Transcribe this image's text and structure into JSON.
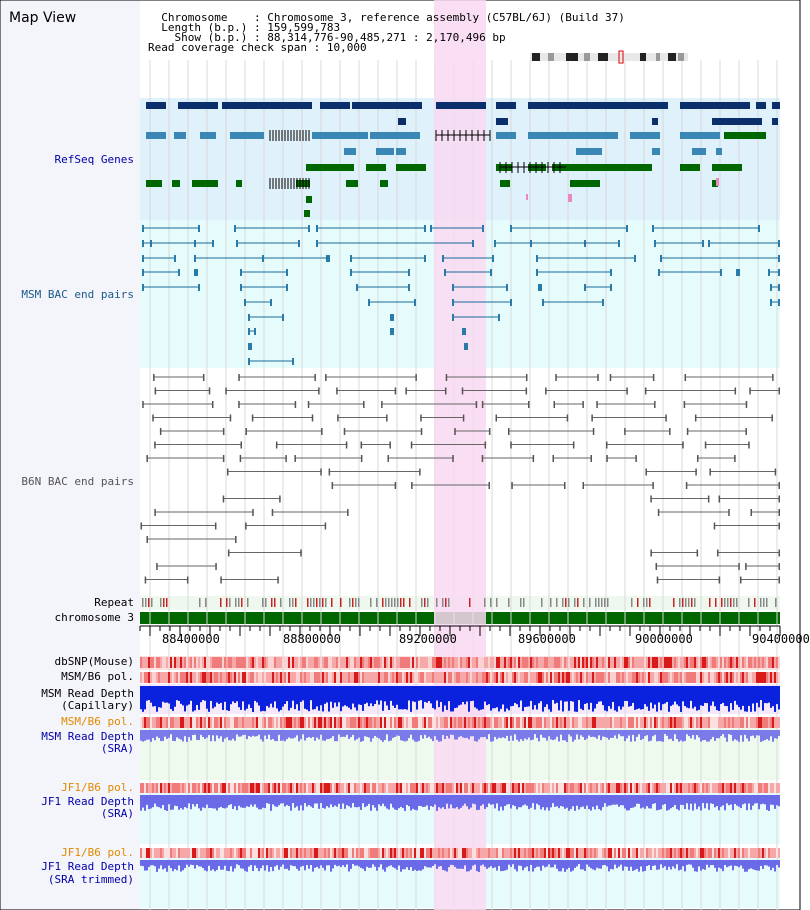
{
  "title": "Map View",
  "header": {
    "chromosome_key": "Chromosome",
    "chromosome_value": "Chromosome 3, reference assembly (C57BL/6J) (Build 37)",
    "length_key": "Length (b.p.)",
    "length_value": "159,599,783",
    "show_key": "Show (b.p.)",
    "show_value": "88,314,776-90,485,271 : 2,170,496 bp",
    "span_key": "Read coverage check span",
    "span_value": "10,000"
  },
  "tracks": {
    "refseq": "RefSeq Genes",
    "msm_bac": "MSM BAC end pairs",
    "b6n_bac": "B6N BAC end pairs",
    "repeat": "Repeat",
    "chromosome": "chromosome 3",
    "dbsnp": "dbSNP(Mouse)",
    "msm_b6_pol_1": "MSM/B6 pol.",
    "msm_read_depth_cap": "MSM Read Depth",
    "msm_read_depth_cap_sub": "(Capillary)",
    "msm_b6_pol_2": "MSM/B6 pol.",
    "msm_read_depth_sra": "MSM Read Depth",
    "msm_read_depth_sra_sub": "(SRA)",
    "jf1_b6_pol_1": "JF1/B6 pol.",
    "jf1_read_depth_sra": "JF1 Read Depth",
    "jf1_read_depth_sra_sub": "(SRA)",
    "jf1_b6_pol_2": "JF1/B6 pol.",
    "jf1_read_depth_trim": "JF1 Read Depth",
    "jf1_read_depth_trim_sub": "(SRA trimmed)"
  },
  "axis_ticks": [
    "88400000",
    "88800000",
    "89200000",
    "89600000",
    "90000000",
    "90400000"
  ],
  "colors": {
    "refseq_label": "#0000aa",
    "msm_label": "#1a5a8a",
    "b6n_label": "#555555",
    "orange_label": "#e08a00",
    "blue_label": "#0000aa",
    "highlight": "#f9d9f2",
    "chromosome_bar": "#006600"
  }
}
